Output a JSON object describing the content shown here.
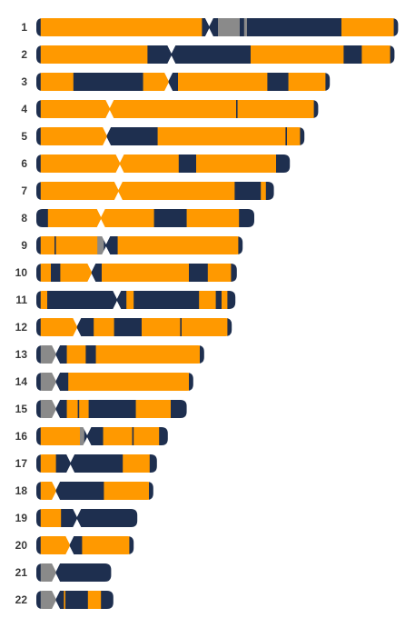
{
  "colors": {
    "orange": "#ff9900",
    "navy": "#1e2f4f",
    "gray": "#8a8a8a",
    "label": "#3a3a3a"
  },
  "chromosomes": [
    {
      "name": "1",
      "length": 49.8,
      "centromere": 23.8,
      "segments": [
        [
          0,
          0.6,
          "navy"
        ],
        [
          0.6,
          22.8,
          "orange"
        ],
        [
          22.8,
          23.8,
          "navy"
        ],
        [
          23.8,
          25.0,
          "navy"
        ],
        [
          25.0,
          28.0,
          "gray"
        ],
        [
          28.0,
          28.6,
          "navy"
        ],
        [
          28.6,
          29.0,
          "gray"
        ],
        [
          29.0,
          42.0,
          "navy"
        ],
        [
          42.0,
          49.2,
          "orange"
        ],
        [
          49.2,
          49.8,
          "navy"
        ]
      ]
    },
    {
      "name": "2",
      "length": 49.3,
      "centromere": 18.6,
      "segments": [
        [
          0,
          0.6,
          "navy"
        ],
        [
          0.6,
          15.3,
          "orange"
        ],
        [
          15.3,
          18.6,
          "navy"
        ],
        [
          18.6,
          29.5,
          "navy"
        ],
        [
          29.5,
          42.3,
          "orange"
        ],
        [
          42.3,
          44.8,
          "navy"
        ],
        [
          44.8,
          48.7,
          "orange"
        ],
        [
          48.7,
          49.3,
          "navy"
        ]
      ]
    },
    {
      "name": "3",
      "length": 40.4,
      "centromere": 18.2,
      "segments": [
        [
          0,
          0.6,
          "navy"
        ],
        [
          0.6,
          5.1,
          "orange"
        ],
        [
          5.1,
          14.7,
          "navy"
        ],
        [
          14.7,
          18.2,
          "orange"
        ],
        [
          18.2,
          19.5,
          "navy"
        ],
        [
          19.5,
          31.8,
          "orange"
        ],
        [
          31.8,
          34.7,
          "navy"
        ],
        [
          34.7,
          39.8,
          "orange"
        ],
        [
          39.8,
          40.4,
          "navy"
        ]
      ]
    },
    {
      "name": "4",
      "length": 38.8,
      "centromere": 10.1,
      "segments": [
        [
          0,
          0.6,
          "navy"
        ],
        [
          0.6,
          10.1,
          "orange"
        ],
        [
          10.1,
          27.5,
          "orange"
        ],
        [
          27.5,
          27.7,
          "navy"
        ],
        [
          27.7,
          38.2,
          "orange"
        ],
        [
          38.2,
          38.8,
          "navy"
        ]
      ]
    },
    {
      "name": "5",
      "length": 36.9,
      "centromere": 9.7,
      "segments": [
        [
          0,
          0.6,
          "navy"
        ],
        [
          0.6,
          9.7,
          "orange"
        ],
        [
          9.7,
          16.7,
          "navy"
        ],
        [
          16.7,
          34.3,
          "orange"
        ],
        [
          34.3,
          34.5,
          "navy"
        ],
        [
          34.5,
          36.3,
          "orange"
        ],
        [
          36.3,
          36.9,
          "navy"
        ]
      ]
    },
    {
      "name": "6",
      "length": 34.9,
      "centromere": 11.5,
      "segments": [
        [
          0,
          0.6,
          "navy"
        ],
        [
          0.6,
          11.5,
          "orange"
        ],
        [
          11.5,
          19.6,
          "orange"
        ],
        [
          19.6,
          22.0,
          "navy"
        ],
        [
          22.0,
          33.0,
          "orange"
        ],
        [
          33.0,
          34.9,
          "navy"
        ]
      ]
    },
    {
      "name": "7",
      "length": 32.7,
      "centromere": 11.3,
      "segments": [
        [
          0,
          0.6,
          "navy"
        ],
        [
          0.6,
          11.3,
          "orange"
        ],
        [
          11.3,
          27.3,
          "orange"
        ],
        [
          27.3,
          30.9,
          "navy"
        ],
        [
          30.9,
          31.6,
          "orange"
        ],
        [
          31.6,
          32.7,
          "navy"
        ]
      ]
    },
    {
      "name": "8",
      "length": 30.0,
      "centromere": 8.9,
      "segments": [
        [
          0,
          1.6,
          "navy"
        ],
        [
          1.6,
          8.9,
          "orange"
        ],
        [
          8.9,
          16.2,
          "orange"
        ],
        [
          16.2,
          20.7,
          "navy"
        ],
        [
          20.7,
          27.9,
          "orange"
        ],
        [
          27.9,
          30.0,
          "navy"
        ]
      ]
    },
    {
      "name": "9",
      "length": 28.4,
      "centromere": 9.6,
      "segments": [
        [
          0,
          0.6,
          "navy"
        ],
        [
          0.6,
          2.5,
          "orange"
        ],
        [
          2.5,
          2.7,
          "navy"
        ],
        [
          2.7,
          8.4,
          "orange"
        ],
        [
          8.4,
          9.3,
          "gray"
        ],
        [
          9.3,
          9.6,
          "navy"
        ],
        [
          9.6,
          11.2,
          "navy"
        ],
        [
          11.2,
          27.8,
          "orange"
        ],
        [
          27.8,
          28.4,
          "navy"
        ]
      ]
    },
    {
      "name": "10",
      "length": 27.6,
      "centromere": 7.6,
      "segments": [
        [
          0,
          0.6,
          "navy"
        ],
        [
          0.6,
          2.0,
          "orange"
        ],
        [
          2.0,
          3.3,
          "navy"
        ],
        [
          3.3,
          7.6,
          "orange"
        ],
        [
          7.6,
          9.0,
          "navy"
        ],
        [
          9.0,
          21.0,
          "orange"
        ],
        [
          21.0,
          23.6,
          "navy"
        ],
        [
          23.6,
          26.8,
          "orange"
        ],
        [
          26.8,
          27.6,
          "navy"
        ]
      ]
    },
    {
      "name": "11",
      "length": 27.4,
      "centromere": 11.1,
      "segments": [
        [
          0,
          0.6,
          "navy"
        ],
        [
          0.6,
          1.5,
          "orange"
        ],
        [
          1.5,
          11.1,
          "navy"
        ],
        [
          11.1,
          12.4,
          "navy"
        ],
        [
          12.4,
          13.4,
          "orange"
        ],
        [
          13.4,
          22.4,
          "navy"
        ],
        [
          22.4,
          24.7,
          "orange"
        ],
        [
          24.7,
          25.5,
          "navy"
        ],
        [
          25.5,
          26.3,
          "orange"
        ],
        [
          26.3,
          27.4,
          "navy"
        ]
      ]
    },
    {
      "name": "12",
      "length": 26.9,
      "centromere": 5.6,
      "segments": [
        [
          0,
          0.6,
          "navy"
        ],
        [
          0.6,
          5.6,
          "orange"
        ],
        [
          5.6,
          7.9,
          "navy"
        ],
        [
          7.9,
          10.7,
          "orange"
        ],
        [
          10.7,
          14.5,
          "navy"
        ],
        [
          14.5,
          19.8,
          "orange"
        ],
        [
          19.8,
          20.0,
          "navy"
        ],
        [
          20.0,
          26.3,
          "orange"
        ],
        [
          26.3,
          26.9,
          "navy"
        ]
      ]
    },
    {
      "name": "13",
      "length": 23.1,
      "centromere": 2.7,
      "segments": [
        [
          0,
          0.6,
          "navy"
        ],
        [
          0.6,
          2.7,
          "gray"
        ],
        [
          2.7,
          4.2,
          "navy"
        ],
        [
          4.2,
          6.8,
          "orange"
        ],
        [
          6.8,
          8.2,
          "navy"
        ],
        [
          8.2,
          22.5,
          "orange"
        ],
        [
          22.5,
          23.1,
          "navy"
        ]
      ]
    },
    {
      "name": "14",
      "length": 21.6,
      "centromere": 2.7,
      "segments": [
        [
          0,
          0.6,
          "navy"
        ],
        [
          0.6,
          2.7,
          "gray"
        ],
        [
          2.7,
          4.4,
          "navy"
        ],
        [
          4.4,
          21.0,
          "orange"
        ],
        [
          21.0,
          21.6,
          "navy"
        ]
      ]
    },
    {
      "name": "15",
      "length": 20.7,
      "centromere": 2.7,
      "segments": [
        [
          0,
          0.6,
          "navy"
        ],
        [
          0.6,
          2.7,
          "gray"
        ],
        [
          2.7,
          4.2,
          "navy"
        ],
        [
          4.2,
          5.7,
          "orange"
        ],
        [
          5.7,
          5.9,
          "navy"
        ],
        [
          5.9,
          7.2,
          "orange"
        ],
        [
          7.2,
          13.7,
          "navy"
        ],
        [
          13.7,
          18.5,
          "orange"
        ],
        [
          18.5,
          20.7,
          "navy"
        ]
      ]
    },
    {
      "name": "16",
      "length": 18.1,
      "centromere": 7.0,
      "segments": [
        [
          0,
          0.6,
          "navy"
        ],
        [
          0.6,
          6.0,
          "orange"
        ],
        [
          6.0,
          6.6,
          "gray"
        ],
        [
          6.6,
          7.0,
          "navy"
        ],
        [
          7.0,
          9.2,
          "navy"
        ],
        [
          9.2,
          13.2,
          "orange"
        ],
        [
          13.2,
          13.4,
          "navy"
        ],
        [
          13.4,
          16.9,
          "orange"
        ],
        [
          16.9,
          18.1,
          "navy"
        ]
      ]
    },
    {
      "name": "17",
      "length": 16.6,
      "centromere": 4.7,
      "segments": [
        [
          0,
          0.6,
          "navy"
        ],
        [
          0.6,
          2.7,
          "orange"
        ],
        [
          2.7,
          4.7,
          "navy"
        ],
        [
          4.7,
          11.9,
          "navy"
        ],
        [
          11.9,
          15.6,
          "orange"
        ],
        [
          15.6,
          16.6,
          "navy"
        ]
      ]
    },
    {
      "name": "18",
      "length": 16.1,
      "centromere": 2.7,
      "segments": [
        [
          0,
          0.6,
          "navy"
        ],
        [
          0.6,
          2.7,
          "orange"
        ],
        [
          2.7,
          9.3,
          "navy"
        ],
        [
          9.3,
          15.5,
          "orange"
        ],
        [
          15.5,
          16.1,
          "navy"
        ]
      ]
    },
    {
      "name": "19",
      "length": 13.9,
      "centromere": 5.6,
      "segments": [
        [
          0,
          0.6,
          "navy"
        ],
        [
          0.6,
          3.4,
          "orange"
        ],
        [
          3.4,
          5.6,
          "navy"
        ],
        [
          5.6,
          13.9,
          "navy"
        ]
      ]
    },
    {
      "name": "20",
      "length": 13.4,
      "centromere": 4.6,
      "segments": [
        [
          0,
          0.6,
          "navy"
        ],
        [
          0.6,
          4.6,
          "orange"
        ],
        [
          4.6,
          6.3,
          "navy"
        ],
        [
          6.3,
          12.8,
          "orange"
        ],
        [
          12.8,
          13.4,
          "navy"
        ]
      ]
    },
    {
      "name": "21",
      "length": 10.3,
      "centromere": 2.7,
      "segments": [
        [
          0,
          0.6,
          "navy"
        ],
        [
          0.6,
          2.7,
          "gray"
        ],
        [
          2.7,
          10.3,
          "navy"
        ]
      ]
    },
    {
      "name": "22",
      "length": 10.6,
      "centromere": 2.7,
      "segments": [
        [
          0,
          0.6,
          "navy"
        ],
        [
          0.6,
          2.7,
          "gray"
        ],
        [
          2.7,
          3.8,
          "navy"
        ],
        [
          3.8,
          4.0,
          "orange"
        ],
        [
          4.0,
          7.1,
          "navy"
        ],
        [
          7.1,
          8.9,
          "orange"
        ],
        [
          8.9,
          10.6,
          "navy"
        ]
      ]
    }
  ]
}
